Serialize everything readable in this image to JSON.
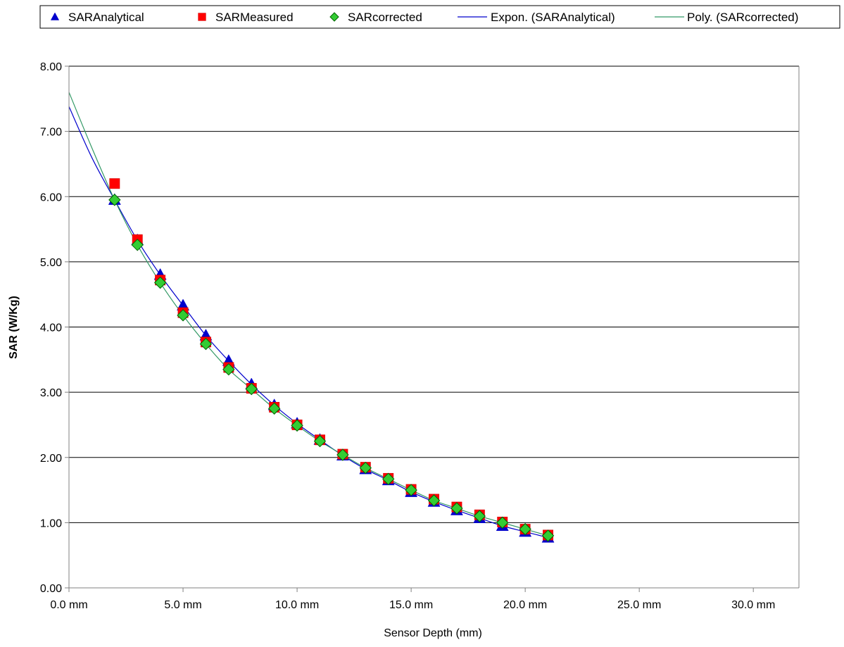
{
  "chart_data": {
    "type": "scatter",
    "xlabel": "Sensor Depth (mm)",
    "ylabel": "SAR (W/Kg)",
    "xlim": [
      0,
      32
    ],
    "ylim": [
      0,
      8
    ],
    "x_tick_values": [
      0,
      5,
      10,
      15,
      20,
      25,
      30
    ],
    "x_tick_labels": [
      "0.0 mm",
      "5.0 mm",
      "10.0 mm",
      "15.0 mm",
      "20.0 mm",
      "25.0 mm",
      "30.0 mm"
    ],
    "y_tick_values": [
      0,
      1,
      2,
      3,
      4,
      5,
      6,
      7,
      8
    ],
    "y_tick_labels": [
      "0.00",
      "1.00",
      "2.00",
      "3.00",
      "4.00",
      "5.00",
      "6.00",
      "7.00",
      "8.00"
    ],
    "grid": "horizontal major gridlines",
    "legend_position": "top",
    "x": [
      2,
      3,
      4,
      5,
      6,
      7,
      8,
      9,
      10,
      11,
      12,
      13,
      14,
      15,
      16,
      17,
      18,
      19,
      20,
      21
    ],
    "series": [
      {
        "name": "SARAnalytical",
        "kind": "marker",
        "marker": "triangle",
        "color": "#0000CC",
        "values": [
          5.95,
          5.33,
          4.8,
          4.33,
          3.87,
          3.48,
          3.12,
          2.8,
          2.52,
          2.27,
          2.03,
          1.82,
          1.65,
          1.47,
          1.32,
          1.19,
          1.07,
          0.95,
          0.86,
          0.77
        ]
      },
      {
        "name": "SARMeasured",
        "kind": "marker",
        "marker": "square",
        "color": "#FF0000",
        "values": [
          6.2,
          5.34,
          4.72,
          4.22,
          3.77,
          3.38,
          3.06,
          2.77,
          2.5,
          2.27,
          2.05,
          1.85,
          1.68,
          1.51,
          1.36,
          1.24,
          1.12,
          1.01,
          0.9,
          0.81
        ]
      },
      {
        "name": "SARcorrected",
        "kind": "marker",
        "marker": "diamond",
        "color": "#33CC33",
        "values": [
          5.95,
          5.26,
          4.68,
          4.18,
          3.74,
          3.35,
          3.05,
          2.75,
          2.49,
          2.25,
          2.04,
          1.84,
          1.67,
          1.5,
          1.34,
          1.22,
          1.1,
          1.0,
          0.9,
          0.8
        ]
      },
      {
        "name": "Expon. (SARAnalytical)",
        "kind": "trendline",
        "color": "#0000CC",
        "x": [
          0,
          1,
          2,
          3,
          4,
          5,
          6,
          7,
          8,
          9,
          10,
          11,
          12,
          13,
          14,
          15,
          16,
          17,
          18,
          19,
          20,
          21
        ],
        "values": [
          7.38,
          6.6,
          5.95,
          5.33,
          4.8,
          4.33,
          3.87,
          3.48,
          3.12,
          2.8,
          2.52,
          2.27,
          2.03,
          1.82,
          1.65,
          1.47,
          1.32,
          1.19,
          1.07,
          0.95,
          0.86,
          0.77
        ]
      },
      {
        "name": "Poly. (SARcorrected)",
        "kind": "trendline",
        "color": "#339966",
        "x": [
          0,
          1,
          2,
          3,
          4,
          5,
          6,
          7,
          8,
          9,
          10,
          11,
          12,
          13,
          14,
          15,
          16,
          17,
          18,
          19,
          20,
          21
        ],
        "values": [
          7.6,
          6.75,
          5.95,
          5.26,
          4.68,
          4.18,
          3.74,
          3.35,
          3.05,
          2.75,
          2.49,
          2.25,
          2.04,
          1.84,
          1.67,
          1.5,
          1.34,
          1.22,
          1.1,
          1.0,
          0.9,
          0.8
        ]
      }
    ]
  }
}
